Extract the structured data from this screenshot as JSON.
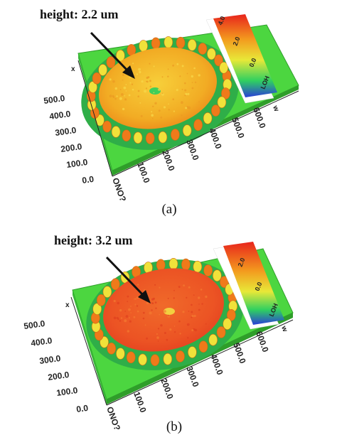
{
  "panels": [
    {
      "annotation": "height: 2.2 um",
      "caption": "(a)",
      "height_um": 2.2,
      "surface_color": "#f2b020",
      "center_color": "#f5c830",
      "x_ticks": [
        "0.0",
        "100.0",
        "200.0",
        "300.0",
        "400.0",
        "500.0",
        "600.0"
      ],
      "y_ticks": [
        "0.0",
        "100.0",
        "200.0",
        "300.0",
        "400.0",
        "500.0"
      ],
      "x_axis_start": "ONO?",
      "corner_label_left": "x",
      "corner_label_right": "w",
      "colorbar_ticks": [
        "4.0",
        "2.0",
        "0.0"
      ],
      "colorbar_bottom_label": "LOH"
    },
    {
      "annotation": "height: 3.2 um",
      "caption": "(b)",
      "height_um": 3.2,
      "surface_color": "#ee5a26",
      "center_color": "#f07a2c",
      "x_ticks": [
        "0.0",
        "100.0",
        "200.0",
        "300.0",
        "400.0",
        "500.0",
        "600.0"
      ],
      "y_ticks": [
        "0.0",
        "100.0",
        "200.0",
        "300.0",
        "400.0",
        "500.0"
      ],
      "x_axis_start": "ONO?",
      "corner_label_left": "x",
      "corner_label_right": "w",
      "colorbar_ticks": [
        "2.0",
        "0.0"
      ],
      "colorbar_bottom_label": "LOH"
    }
  ],
  "colors": {
    "plane": "#4cd640",
    "plane_edge": "#2f9e2a",
    "ring_green": "#2fae48",
    "bump_yellow": "#f0e23a",
    "bump_orange": "#ef7a1a",
    "arrow": "#111111"
  }
}
